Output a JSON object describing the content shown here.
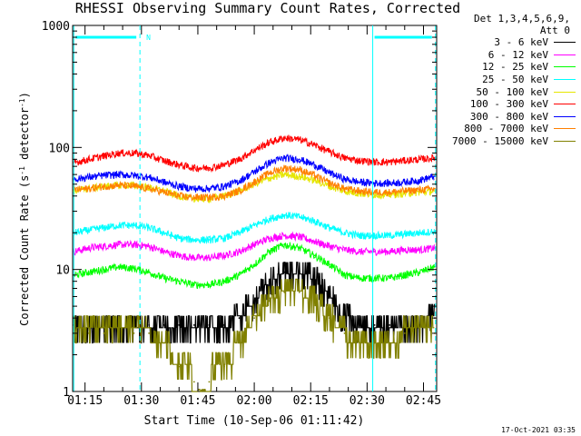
{
  "chart_data": {
    "type": "line",
    "title": "RHESSI Observing Summary Count Rates, Corrected",
    "xlabel": "Start Time (10-Sep-06 01:11:42)",
    "ylabel": "Corrected Count Rate (s",
    "ylabel_sup1": "-1",
    "ylabel_mid": " detector",
    "ylabel_sup2": "-1",
    "ylabel_end": ")",
    "yscale": "log",
    "ylim": [
      1,
      1000
    ],
    "xlim_minutes": [
      71.7,
      168.5
    ],
    "x_ticks": [
      {
        "label": "01:15",
        "minutes": 75
      },
      {
        "label": "01:30",
        "minutes": 90
      },
      {
        "label": "01:45",
        "minutes": 105
      },
      {
        "label": "02:00",
        "minutes": 120
      },
      {
        "label": "02:15",
        "minutes": 135
      },
      {
        "label": "02:30",
        "minutes": 150
      },
      {
        "label": "02:45",
        "minutes": 165
      }
    ],
    "y_ticks": [
      {
        "label": "1",
        "value": 1
      },
      {
        "label": "10",
        "value": 10
      },
      {
        "label": "100",
        "value": 100
      },
      {
        "label": "1000",
        "value": 1000
      }
    ],
    "x_minutes": [
      72,
      76,
      80,
      84,
      88,
      92,
      96,
      100,
      104,
      108,
      112,
      116,
      120,
      124,
      128,
      132,
      136,
      140,
      144,
      148,
      152,
      156,
      160,
      164,
      168
    ],
    "series": [
      {
        "name": "3 - 6 keV",
        "color": "#000000",
        "values": [
          3.5,
          3.5,
          3.5,
          3.5,
          3.5,
          3.5,
          3.5,
          3.5,
          3.5,
          3.5,
          3.5,
          4.0,
          5.5,
          8.0,
          9.5,
          9.5,
          8.5,
          6.0,
          4.0,
          3.5,
          3.5,
          3.5,
          3.5,
          3.5,
          4.0
        ]
      },
      {
        "name": "6 - 12 keV",
        "color": "#ff00ff",
        "values": [
          14,
          15,
          15.5,
          16,
          16,
          15.5,
          14,
          13,
          12.5,
          12.5,
          13,
          14,
          16,
          18,
          19,
          18.5,
          17,
          15.5,
          14.5,
          14,
          14,
          14,
          14.5,
          14.5,
          15
        ]
      },
      {
        "name": "12 - 25 keV",
        "color": "#00ff00",
        "values": [
          9.0,
          9.5,
          10.0,
          10.5,
          10.2,
          9.5,
          8.5,
          8.0,
          7.5,
          7.5,
          8.0,
          9.0,
          11.0,
          14.0,
          16.0,
          15.0,
          13.0,
          11.0,
          9.0,
          8.5,
          8.5,
          8.5,
          9.0,
          9.5,
          10.5
        ]
      },
      {
        "name": "25 - 50 keV",
        "color": "#00ffff",
        "values": [
          20,
          21,
          22,
          23,
          23,
          22,
          20,
          18,
          17.5,
          17.5,
          18,
          20,
          23,
          26,
          28,
          27,
          25,
          22,
          20,
          19,
          19,
          19,
          19.5,
          20,
          20.5
        ]
      },
      {
        "name": "50 - 100 keV",
        "color": "#e6e600",
        "values": [
          44,
          46,
          48,
          49,
          49,
          47,
          44,
          40,
          38,
          38,
          40,
          44,
          50,
          56,
          60,
          58,
          54,
          48,
          44,
          42,
          41,
          41,
          42,
          43,
          44
        ]
      },
      {
        "name": "100 - 300 keV",
        "color": "#ff0000",
        "values": [
          75,
          80,
          85,
          90,
          90,
          86,
          78,
          72,
          68,
          68,
          72,
          80,
          95,
          110,
          120,
          116,
          105,
          92,
          82,
          78,
          76,
          76,
          78,
          80,
          82
        ]
      },
      {
        "name": "300 - 800 keV",
        "color": "#0000ff",
        "values": [
          55,
          57,
          59,
          60,
          59,
          57,
          52,
          48,
          46,
          46,
          48,
          53,
          63,
          75,
          82,
          80,
          72,
          62,
          55,
          52,
          51,
          51,
          52,
          54,
          58
        ]
      },
      {
        "name": "800 - 7000 keV",
        "color": "#ff8000",
        "values": [
          45,
          46,
          48,
          49,
          48,
          46,
          43,
          40,
          39,
          39,
          40,
          44,
          52,
          62,
          68,
          66,
          59,
          51,
          46,
          44,
          43,
          43,
          44,
          45,
          46
        ]
      },
      {
        "name": "7000 - 15000 keV",
        "color": "#808000",
        "values": [
          3.0,
          3.0,
          3.0,
          3.0,
          3.0,
          3.0,
          2.5,
          1.6,
          1.2,
          1.2,
          1.6,
          2.5,
          4.0,
          5.5,
          6.5,
          6.5,
          5.5,
          4.0,
          3.0,
          2.5,
          2.5,
          2.5,
          3.0,
          3.0,
          3.0
        ]
      }
    ],
    "night_bars": [
      {
        "start_minutes": 72.0,
        "end_minutes": 89.6,
        "label": "N"
      },
      {
        "start_minutes": 151.5,
        "end_minutes": 168.2,
        "label": ""
      }
    ],
    "attenuator_state_lines_minutes": [
      72.0,
      89.6,
      151.5,
      168.2
    ],
    "solid_lines_minutes": [
      72.0,
      151.5
    ],
    "grid": false,
    "legend_placement": "right"
  },
  "legend": {
    "header_line1": "Det 1,3,4,5,6,9,",
    "header_line2": "Att 0",
    "entries": [
      {
        "label": "3 - 6 keV",
        "color": "#000000"
      },
      {
        "label": "6 - 12 keV",
        "color": "#ff00ff"
      },
      {
        "label": "12 - 25 keV",
        "color": "#00ff00"
      },
      {
        "label": "25 - 50 keV",
        "color": "#00ffff"
      },
      {
        "label": "50 - 100 keV",
        "color": "#e6e600"
      },
      {
        "label": "100 - 300 keV",
        "color": "#ff0000"
      },
      {
        "label": "300 - 800 keV",
        "color": "#0000ff"
      },
      {
        "label": "800 - 7000 keV",
        "color": "#ff8000"
      },
      {
        "label": "7000 - 15000 keV",
        "color": "#808000"
      }
    ]
  },
  "footer": {
    "stamp": "17-Oct-2021 03:35"
  }
}
